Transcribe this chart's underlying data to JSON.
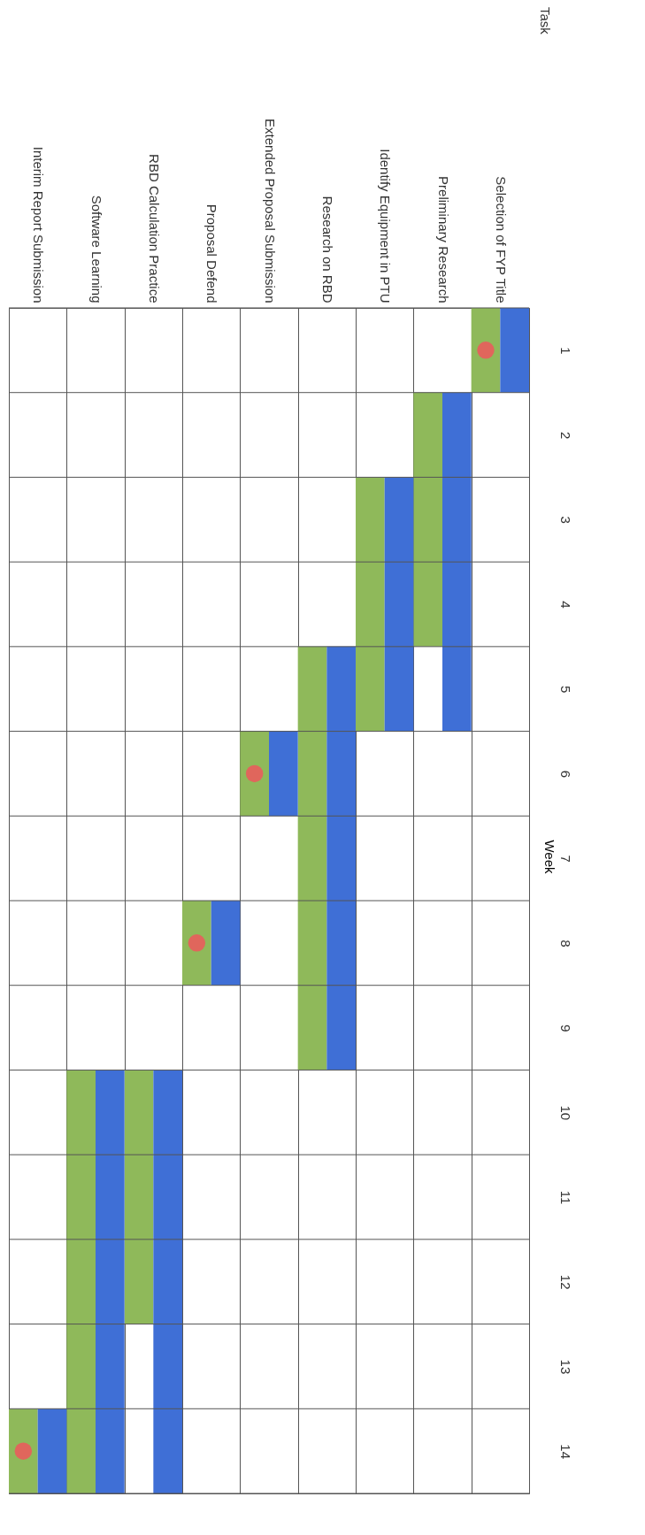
{
  "chart_data": {
    "type": "bar",
    "annotations": [
      "Task"
    ],
    "ylabel": "Week",
    "categories": [
      "Interim Report Submission",
      "Software Learning",
      "RBD Calculation Practice",
      "Proposal Defend",
      "Extended Proposal Submission",
      "Research on RBD",
      "Identify Equipment in PTU",
      "Preliminary Research",
      "Selection of FYP Title"
    ],
    "series": [
      {
        "color": "#8fb95a",
        "base": [
          13,
          9,
          9,
          7,
          5,
          4,
          2,
          1,
          0
        ],
        "values": [
          1,
          5,
          3,
          1,
          1,
          5,
          3,
          3,
          1
        ]
      },
      {
        "color": "#3f6fd6",
        "base": [
          13,
          9,
          9,
          7,
          5,
          4,
          2,
          1,
          0
        ],
        "values": [
          1,
          5,
          5,
          1,
          1,
          5,
          3,
          4,
          1
        ]
      },
      {
        "type": "scatter",
        "color": "#e0665c",
        "x": [
          "Interim Report Submission",
          "Extended Proposal Submission",
          "Proposal Defend",
          "Selection of FYP Title"
        ],
        "values": [
          13.5,
          5.5,
          7.5,
          0.5
        ]
      }
    ],
    "ylim": [
      14,
      0
    ],
    "yticks": [
      {
        "value": 0,
        "label": null
      },
      {
        "value": 0.5,
        "label": "1"
      },
      {
        "value": 1,
        "label": null
      },
      {
        "value": 1.5,
        "label": "2"
      },
      {
        "value": 2,
        "label": null
      },
      {
        "value": 2.5,
        "label": "3"
      },
      {
        "value": 3,
        "label": null
      },
      {
        "value": 3.5,
        "label": "4"
      },
      {
        "value": 4,
        "label": null
      },
      {
        "value": 4.5,
        "label": "5"
      },
      {
        "value": 5,
        "label": null
      },
      {
        "value": 5.5,
        "label": "6"
      },
      {
        "value": 6,
        "label": null
      },
      {
        "value": 6.5,
        "label": "7"
      },
      {
        "value": 7,
        "label": null
      },
      {
        "value": 7.5,
        "label": "8"
      },
      {
        "value": 8,
        "label": null
      },
      {
        "value": 8.5,
        "label": "9"
      },
      {
        "value": 9,
        "label": null
      },
      {
        "value": 9.5,
        "label": "10"
      },
      {
        "value": 10,
        "label": null
      },
      {
        "value": 10.5,
        "label": "11"
      },
      {
        "value": 11,
        "label": null
      },
      {
        "value": 11.5,
        "label": "12"
      },
      {
        "value": 12,
        "label": null
      },
      {
        "value": 12.5,
        "label": "13"
      },
      {
        "value": 13,
        "label": null
      },
      {
        "value": 13.5,
        "label": "14"
      },
      {
        "value": 14,
        "label": null
      }
    ],
    "grid": true,
    "marker": "circle"
  }
}
